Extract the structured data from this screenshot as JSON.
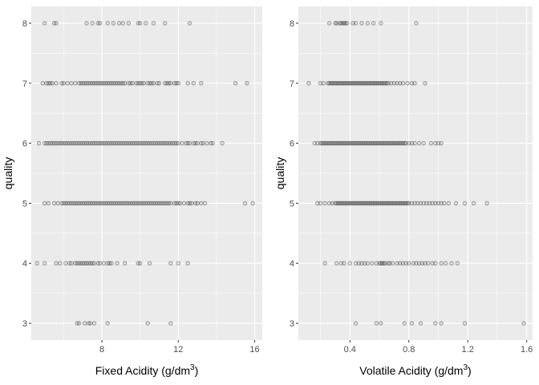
{
  "chart_data": [
    {
      "type": "scatter",
      "xlabel": {
        "prefix": "Fixed Acidity (",
        "units": "g/dm",
        "exp": "3",
        "suffix": ")"
      },
      "ylabel": "quality",
      "xlim": [
        4.3,
        16.4
      ],
      "ylim": [
        2.72,
        8.28
      ],
      "x_ticks": [
        8,
        12,
        16
      ],
      "y_ticks": [
        3,
        4,
        5,
        6,
        7,
        8
      ],
      "grid": true,
      "series": [
        {
          "y": 8,
          "x": [
            5.0,
            5.5,
            5.6,
            7.2,
            7.5,
            7.8,
            7.9,
            8.3,
            8.6,
            8.9,
            9.1,
            9.4,
            9.9,
            10.0,
            10.3,
            10.7,
            11.3,
            12.6
          ]
        },
        {
          "y": 7,
          "x": [
            4.9,
            5.1,
            5.2,
            5.3,
            5.4,
            5.6,
            5.9,
            6.0,
            6.2,
            6.4,
            6.6,
            6.8,
            6.9,
            7.0,
            7.1,
            7.2,
            7.3,
            7.4,
            7.5,
            7.6,
            7.7,
            7.8,
            7.9,
            8.0,
            8.1,
            8.2,
            8.3,
            8.4,
            8.5,
            8.6,
            8.7,
            8.8,
            8.9,
            9.0,
            9.1,
            9.2,
            9.4,
            9.5,
            9.6,
            9.8,
            9.9,
            10.0,
            10.1,
            10.2,
            10.4,
            10.5,
            10.6,
            10.7,
            10.9,
            11.0,
            11.3,
            11.4,
            11.5,
            11.6,
            11.8,
            11.9,
            12.0,
            12.5,
            12.8,
            13.2,
            15.0,
            15.6
          ]
        },
        {
          "y": 6,
          "x": [
            4.7,
            5.0,
            5.1,
            5.2,
            5.3,
            5.4,
            5.5,
            5.6,
            5.7,
            5.8,
            5.9,
            6.0,
            6.1,
            6.2,
            6.3,
            6.4,
            6.5,
            6.6,
            6.7,
            6.8,
            6.9,
            7.0,
            7.1,
            7.2,
            7.3,
            7.4,
            7.5,
            7.6,
            7.7,
            7.8,
            7.9,
            8.0,
            8.1,
            8.2,
            8.3,
            8.4,
            8.5,
            8.6,
            8.7,
            8.8,
            8.9,
            9.0,
            9.1,
            9.2,
            9.3,
            9.4,
            9.5,
            9.6,
            9.7,
            9.8,
            9.9,
            10.0,
            10.1,
            10.2,
            10.3,
            10.4,
            10.5,
            10.6,
            10.7,
            10.8,
            10.9,
            11.0,
            11.1,
            11.2,
            11.3,
            11.4,
            11.5,
            11.6,
            11.7,
            11.8,
            11.9,
            12.0,
            12.2,
            12.4,
            12.5,
            12.6,
            12.8,
            12.9,
            13.0,
            13.2,
            13.3,
            13.5,
            13.7,
            13.8,
            14.3
          ]
        },
        {
          "y": 5,
          "x": [
            5.0,
            5.2,
            5.5,
            5.7,
            5.9,
            6.0,
            6.1,
            6.2,
            6.3,
            6.4,
            6.5,
            6.6,
            6.7,
            6.8,
            6.9,
            7.0,
            7.1,
            7.2,
            7.3,
            7.4,
            7.5,
            7.6,
            7.7,
            7.8,
            7.9,
            8.0,
            8.1,
            8.2,
            8.3,
            8.4,
            8.5,
            8.6,
            8.7,
            8.8,
            8.9,
            9.0,
            9.1,
            9.2,
            9.3,
            9.4,
            9.5,
            9.6,
            9.7,
            9.8,
            9.9,
            10.0,
            10.1,
            10.2,
            10.3,
            10.4,
            10.5,
            10.6,
            10.7,
            10.8,
            10.9,
            11.0,
            11.1,
            11.2,
            11.3,
            11.4,
            11.5,
            11.6,
            11.8,
            11.9,
            12.0,
            12.1,
            12.3,
            12.5,
            12.6,
            12.7,
            12.9,
            13.0,
            13.2,
            13.4,
            15.5,
            15.9
          ]
        },
        {
          "y": 4,
          "x": [
            4.6,
            5.0,
            5.6,
            5.8,
            6.1,
            6.3,
            6.4,
            6.6,
            6.7,
            6.8,
            6.9,
            7.0,
            7.1,
            7.2,
            7.3,
            7.4,
            7.5,
            7.6,
            7.8,
            7.9,
            8.1,
            8.3,
            8.4,
            8.5,
            8.8,
            9.2,
            9.9,
            10.0,
            10.5,
            11.6,
            12.0,
            12.5
          ]
        },
        {
          "y": 3,
          "x": [
            6.7,
            6.8,
            7.1,
            7.3,
            7.4,
            7.6,
            8.3,
            10.4,
            11.6
          ]
        }
      ]
    },
    {
      "type": "scatter",
      "xlabel": {
        "prefix": "Volatile Acidity (",
        "units": "g/dm",
        "exp": "3",
        "suffix": ")"
      },
      "ylabel": "quality",
      "xlim": [
        0.05,
        1.64
      ],
      "ylim": [
        2.72,
        8.28
      ],
      "x_ticks": [
        0.4,
        0.8,
        1.2,
        1.6
      ],
      "y_ticks": [
        3,
        4,
        5,
        6,
        7,
        8
      ],
      "grid": true,
      "series": [
        {
          "y": 8,
          "x": [
            0.26,
            0.3,
            0.31,
            0.33,
            0.34,
            0.35,
            0.36,
            0.37,
            0.38,
            0.42,
            0.44,
            0.48,
            0.52,
            0.56,
            0.61,
            0.85
          ]
        },
        {
          "y": 7,
          "x": [
            0.12,
            0.2,
            0.22,
            0.25,
            0.26,
            0.27,
            0.28,
            0.29,
            0.3,
            0.31,
            0.32,
            0.33,
            0.34,
            0.35,
            0.36,
            0.37,
            0.38,
            0.39,
            0.4,
            0.41,
            0.42,
            0.43,
            0.44,
            0.45,
            0.46,
            0.47,
            0.48,
            0.49,
            0.5,
            0.51,
            0.52,
            0.53,
            0.54,
            0.55,
            0.56,
            0.57,
            0.58,
            0.59,
            0.6,
            0.61,
            0.62,
            0.63,
            0.64,
            0.65,
            0.66,
            0.68,
            0.7,
            0.72,
            0.74,
            0.76,
            0.79,
            0.82,
            0.84,
            0.91
          ]
        },
        {
          "y": 6,
          "x": [
            0.16,
            0.18,
            0.2,
            0.21,
            0.22,
            0.23,
            0.24,
            0.25,
            0.26,
            0.27,
            0.28,
            0.29,
            0.3,
            0.31,
            0.32,
            0.33,
            0.34,
            0.35,
            0.36,
            0.37,
            0.38,
            0.39,
            0.4,
            0.41,
            0.42,
            0.43,
            0.44,
            0.45,
            0.46,
            0.47,
            0.48,
            0.49,
            0.5,
            0.51,
            0.52,
            0.53,
            0.54,
            0.55,
            0.56,
            0.57,
            0.58,
            0.59,
            0.6,
            0.61,
            0.62,
            0.63,
            0.64,
            0.65,
            0.66,
            0.67,
            0.68,
            0.69,
            0.7,
            0.71,
            0.72,
            0.73,
            0.74,
            0.75,
            0.76,
            0.77,
            0.78,
            0.8,
            0.82,
            0.84,
            0.87,
            0.9,
            0.95,
            0.98,
            1.0,
            1.02
          ]
        },
        {
          "y": 5,
          "x": [
            0.18,
            0.2,
            0.23,
            0.26,
            0.28,
            0.3,
            0.31,
            0.32,
            0.33,
            0.34,
            0.35,
            0.36,
            0.37,
            0.38,
            0.39,
            0.4,
            0.41,
            0.42,
            0.43,
            0.44,
            0.45,
            0.46,
            0.47,
            0.48,
            0.49,
            0.5,
            0.51,
            0.52,
            0.53,
            0.54,
            0.55,
            0.56,
            0.57,
            0.58,
            0.59,
            0.6,
            0.61,
            0.62,
            0.63,
            0.64,
            0.65,
            0.66,
            0.67,
            0.68,
            0.69,
            0.7,
            0.71,
            0.72,
            0.73,
            0.74,
            0.75,
            0.76,
            0.77,
            0.78,
            0.79,
            0.8,
            0.82,
            0.84,
            0.86,
            0.88,
            0.9,
            0.92,
            0.94,
            0.96,
            0.98,
            1.0,
            1.02,
            1.04,
            1.07,
            1.12,
            1.18,
            1.24,
            1.33
          ]
        },
        {
          "y": 4,
          "x": [
            0.23,
            0.31,
            0.34,
            0.36,
            0.4,
            0.44,
            0.46,
            0.48,
            0.5,
            0.52,
            0.55,
            0.58,
            0.6,
            0.61,
            0.62,
            0.63,
            0.64,
            0.66,
            0.67,
            0.69,
            0.72,
            0.74,
            0.76,
            0.78,
            0.8,
            0.83,
            0.85,
            0.87,
            0.89,
            0.91,
            0.93,
            0.96,
            0.98,
            1.02,
            1.05,
            1.09,
            1.13
          ]
        },
        {
          "y": 3,
          "x": [
            0.44,
            0.58,
            0.61,
            0.77,
            0.82,
            0.88,
            0.98,
            1.02,
            1.18,
            1.58
          ]
        }
      ]
    }
  ]
}
